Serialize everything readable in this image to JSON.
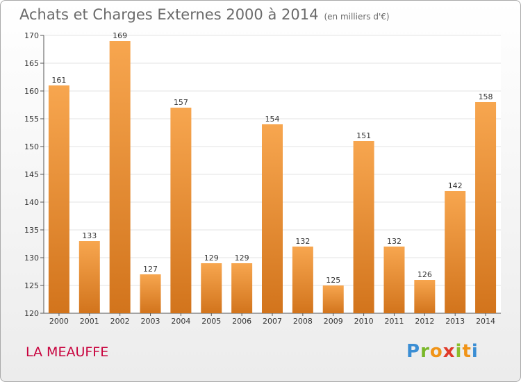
{
  "header": {
    "title": "Achats et Charges Externes 2000 à 2014",
    "subtitle": "(en milliers d'€)"
  },
  "footer": {
    "commune": "LA MEAUFFE",
    "logo_text": "Proxiti"
  },
  "colors": {
    "bar_light": "#f7a64f",
    "bar_dark": "#d2741c",
    "grid": "#e3e3e3",
    "title": "#6a6a6a",
    "commune": "#c8003c"
  },
  "chart_data": {
    "type": "bar",
    "categories": [
      "2000",
      "2001",
      "2002",
      "2003",
      "2004",
      "2005",
      "2006",
      "2007",
      "2008",
      "2009",
      "2010",
      "2011",
      "2012",
      "2013",
      "2014"
    ],
    "values": [
      161,
      133,
      169,
      127,
      157,
      129,
      129,
      154,
      132,
      125,
      151,
      132,
      126,
      142,
      158
    ],
    "title": "Achats et Charges Externes 2000 à 2014",
    "subtitle": "(en milliers d'€)",
    "ylim": [
      120,
      170
    ],
    "yticks": [
      120,
      125,
      130,
      135,
      140,
      145,
      150,
      155,
      160,
      165,
      170
    ],
    "grid": true
  }
}
